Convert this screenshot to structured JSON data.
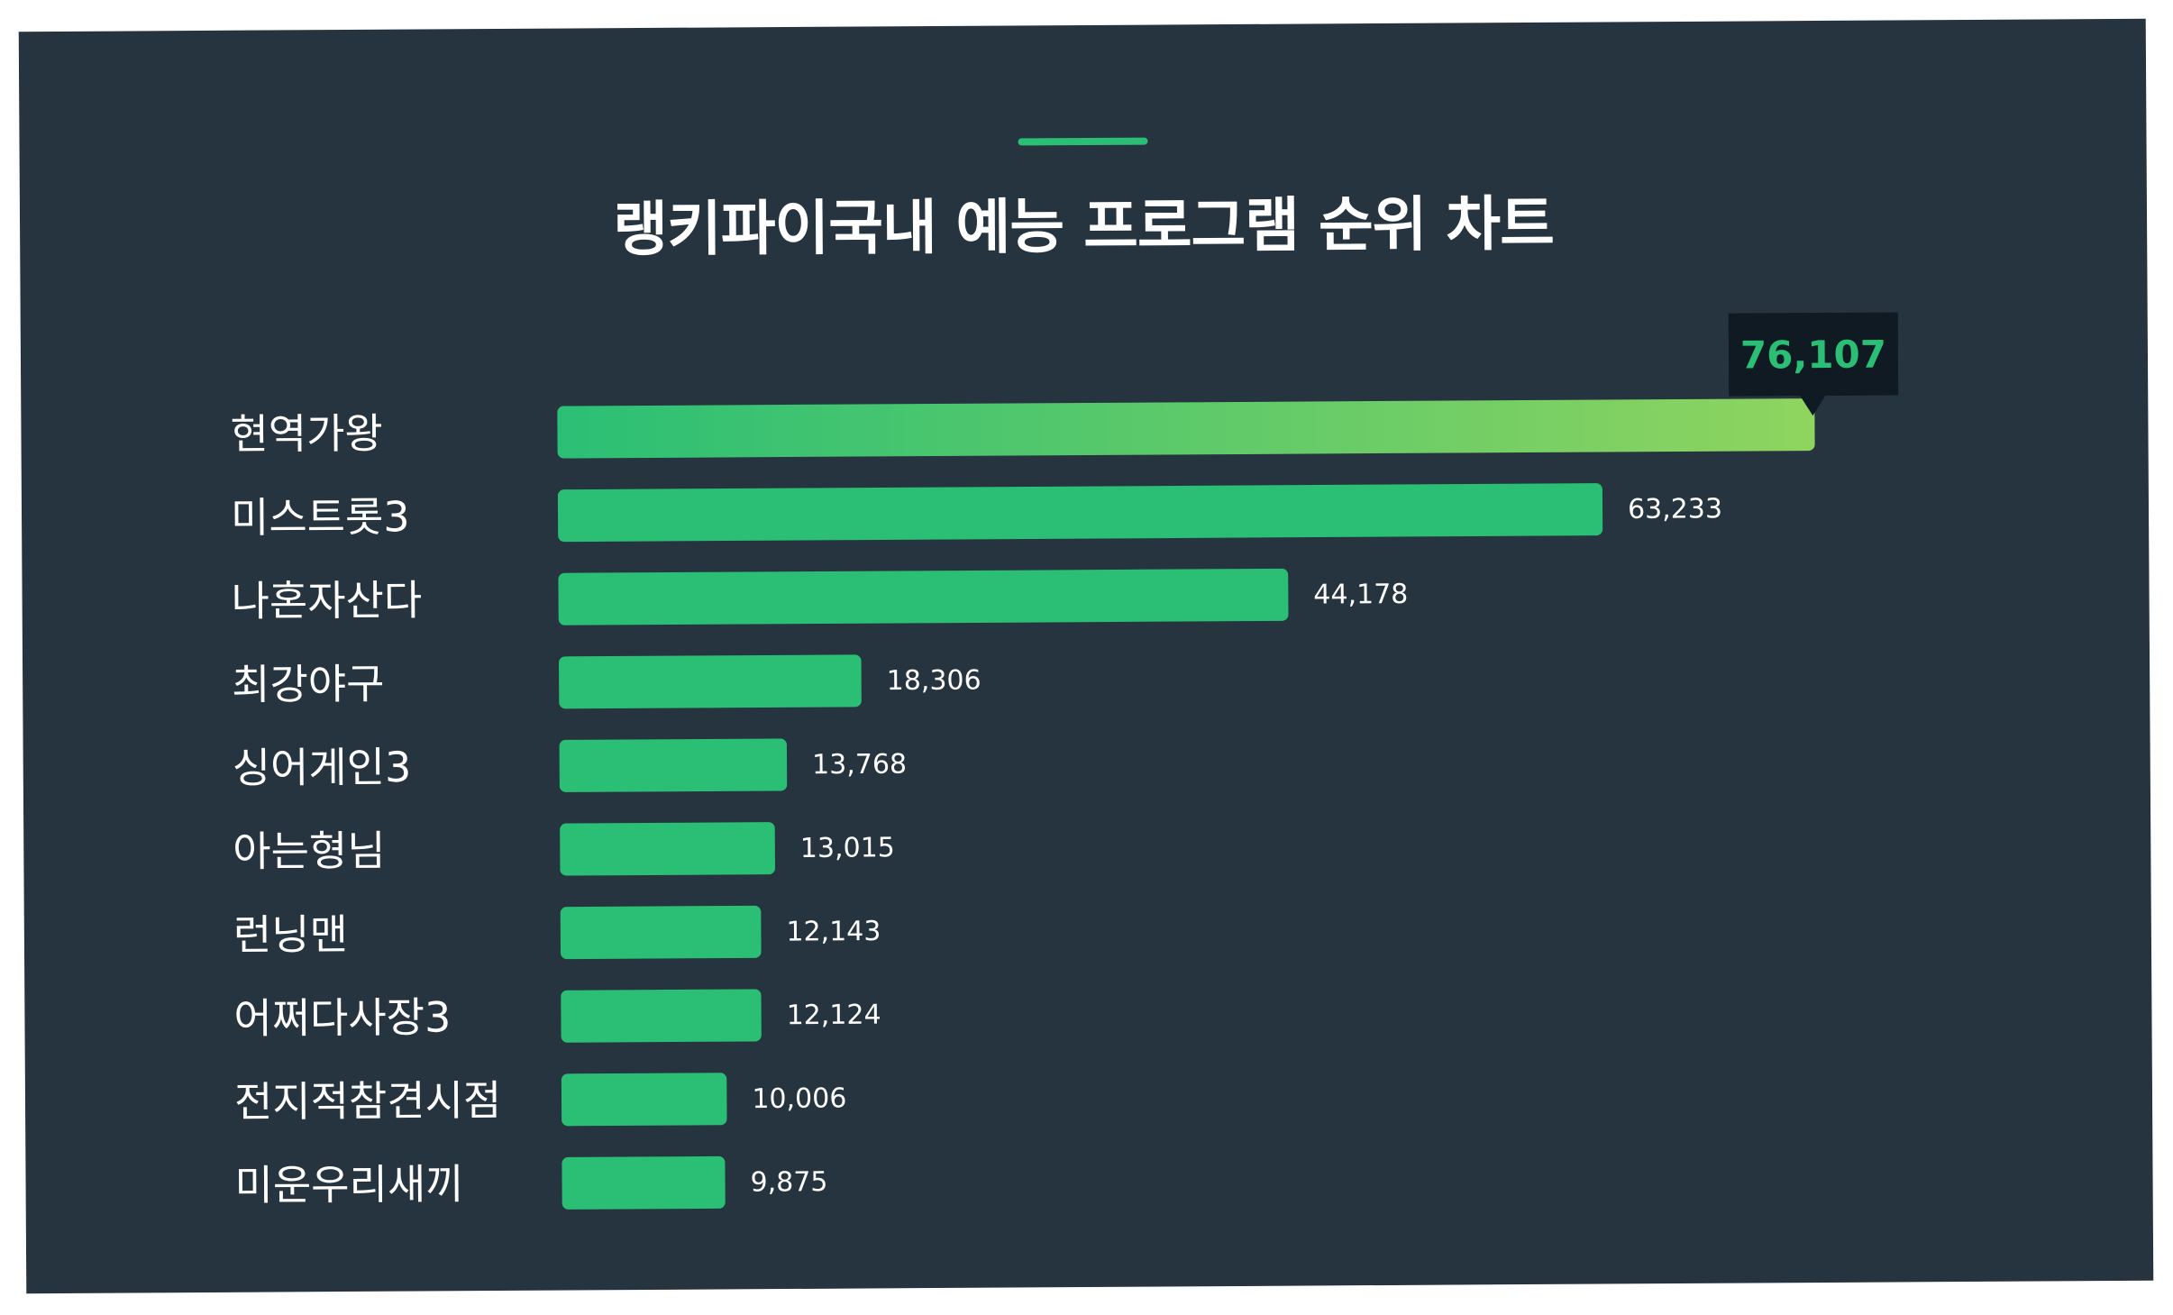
{
  "chart_data": {
    "type": "bar",
    "orientation": "horizontal",
    "title": "랭키파이국내 예능 프로그램 순위 차트",
    "categories": [
      "현역가왕",
      "미스트롯3",
      "나혼자산다",
      "최강야구",
      "싱어게인3",
      "아는형님",
      "런닝맨",
      "어쩌다사장3",
      "전지적참견시점",
      "미운우리새끼"
    ],
    "values": [
      76107,
      63233,
      44178,
      18306,
      13768,
      13015,
      12143,
      12124,
      10006,
      9875
    ],
    "value_labels": [
      "76,107",
      "63,233",
      "44,178",
      "18,306",
      "13,768",
      "13,015",
      "12,143",
      "12,124",
      "10,006",
      "9,875"
    ],
    "highlight_index": 0,
    "xlim": [
      0,
      76107
    ],
    "grid": false,
    "legend": "none"
  },
  "colors": {
    "background": "#263440",
    "bar": "#2bbf75",
    "highlight_gradient_start": "#2bbf75",
    "highlight_gradient_end": "#8fd45f",
    "callout_background": "#0f1a22",
    "text": "#ffffff",
    "accent": "#2bbf75"
  }
}
